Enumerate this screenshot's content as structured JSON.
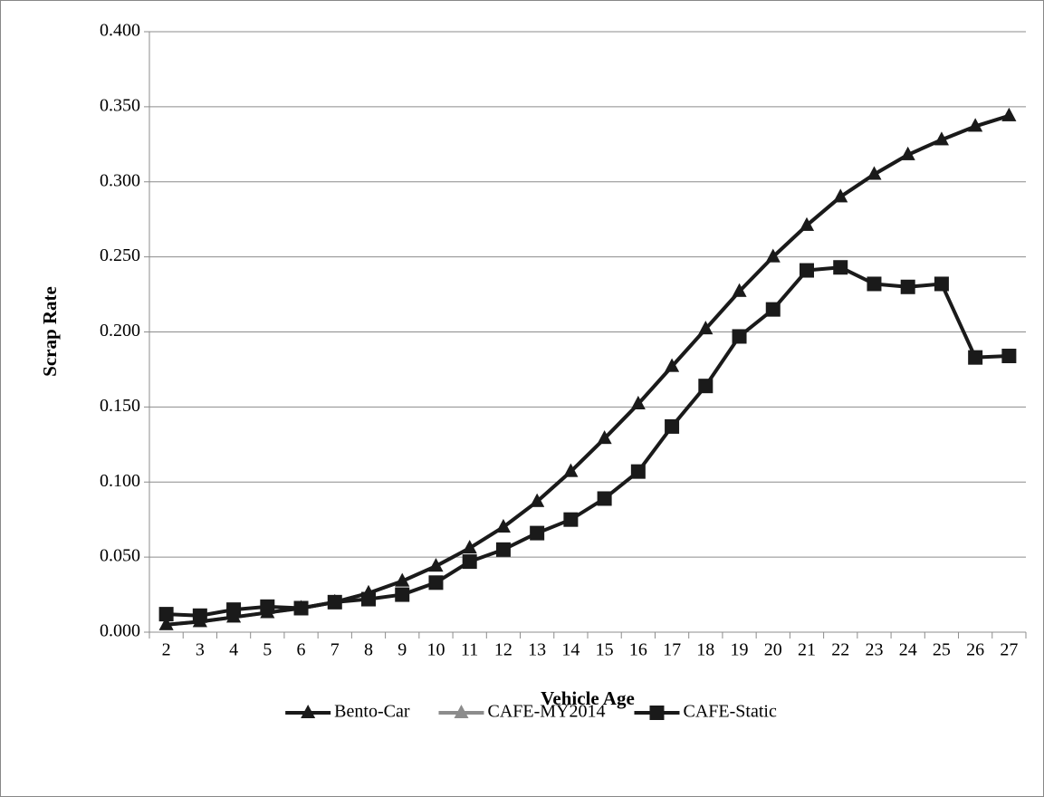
{
  "chart_data": {
    "type": "line",
    "x_label": "Vehicle Age",
    "y_label": "Scrap Rate",
    "categories": [
      "2",
      "3",
      "4",
      "5",
      "6",
      "7",
      "8",
      "9",
      "10",
      "11",
      "12",
      "13",
      "14",
      "15",
      "16",
      "17",
      "18",
      "19",
      "20",
      "21",
      "22",
      "23",
      "24",
      "25",
      "26",
      "27"
    ],
    "series": [
      {
        "name": "Bento-Car",
        "color": "#1a1a1a",
        "marker": "triangle",
        "values": [
          0.005,
          0.007,
          0.01,
          0.013,
          0.016,
          0.02,
          0.026,
          0.034,
          0.044,
          0.056,
          0.07,
          0.087,
          0.107,
          0.129,
          0.152,
          0.177,
          0.202,
          0.227,
          0.25,
          0.271,
          0.29,
          0.305,
          0.318,
          0.328,
          0.337,
          0.344
        ]
      },
      {
        "name": "CAFE-MY2014",
        "color": "#8c8c8c",
        "marker": "triangle",
        "values": [
          0.005,
          0.007,
          0.01,
          0.013,
          0.016,
          0.02,
          0.026,
          0.034,
          0.044,
          0.056,
          0.07,
          0.087,
          0.107,
          0.129,
          0.152,
          0.177,
          0.202,
          0.227,
          0.25,
          0.271,
          0.29,
          0.305,
          0.318,
          0.328,
          0.337,
          0.344
        ]
      },
      {
        "name": "CAFE-Static",
        "color": "#1a1a1a",
        "marker": "square",
        "values": [
          0.012,
          0.011,
          0.015,
          0.017,
          0.016,
          0.02,
          0.022,
          0.025,
          0.033,
          0.047,
          0.055,
          0.066,
          0.075,
          0.089,
          0.107,
          0.137,
          0.164,
          0.197,
          0.215,
          0.241,
          0.243,
          0.232,
          0.23,
          0.232,
          0.183,
          0.184
        ]
      }
    ],
    "ylim": [
      0,
      0.4
    ],
    "yticks": [
      {
        "value": 0,
        "label": "0.000"
      },
      {
        "value": 0.05,
        "label": "0.050"
      },
      {
        "value": 0.1,
        "label": "0.100"
      },
      {
        "value": 0.15,
        "label": "0.150"
      },
      {
        "value": 0.2,
        "label": "0.200"
      },
      {
        "value": 0.25,
        "label": "0.250"
      },
      {
        "value": 0.3,
        "label": "0.300"
      },
      {
        "value": 0.35,
        "label": "0.350"
      },
      {
        "value": 0.4,
        "label": "0.400"
      }
    ],
    "grid": true,
    "legend": "bottom"
  }
}
